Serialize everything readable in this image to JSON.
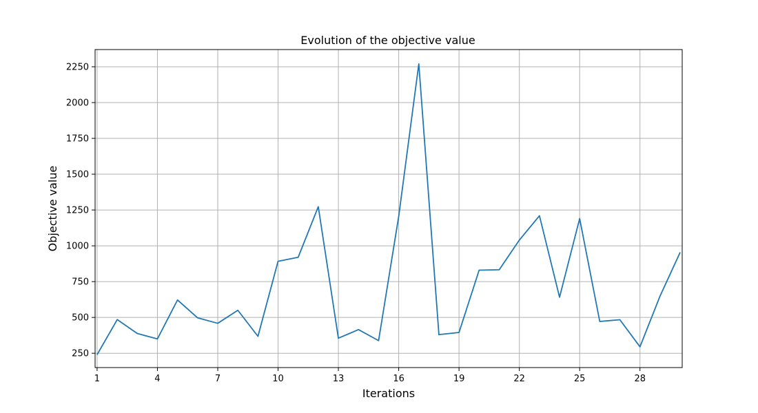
{
  "chart_data": {
    "type": "line",
    "title": "Evolution of the objective value",
    "xlabel": "Iterations",
    "ylabel": "Objective value",
    "xlim": [
      0.9,
      30.1
    ],
    "ylim": [
      150,
      2370
    ],
    "x_ticks": [
      1,
      4,
      7,
      10,
      13,
      16,
      19,
      22,
      25,
      28
    ],
    "y_ticks": [
      250,
      500,
      750,
      1000,
      1250,
      1500,
      1750,
      2000,
      2250
    ],
    "grid": true,
    "legend": "none",
    "line_color": "#1f77b4",
    "series": [
      {
        "x": [
          1,
          2,
          3,
          4,
          5,
          6,
          7,
          8,
          9,
          10,
          11,
          12,
          13,
          14,
          15,
          16,
          17,
          18,
          19,
          20,
          21,
          22,
          23,
          24,
          25,
          26,
          27,
          28,
          29,
          30
        ],
        "values": [
          240,
          485,
          388,
          350,
          622,
          497,
          459,
          550,
          368,
          892,
          920,
          1273,
          355,
          415,
          338,
          1205,
          2270,
          380,
          395,
          830,
          833,
          1040,
          1210,
          641,
          1190,
          472,
          484,
          295,
          650,
          955
        ]
      }
    ]
  }
}
